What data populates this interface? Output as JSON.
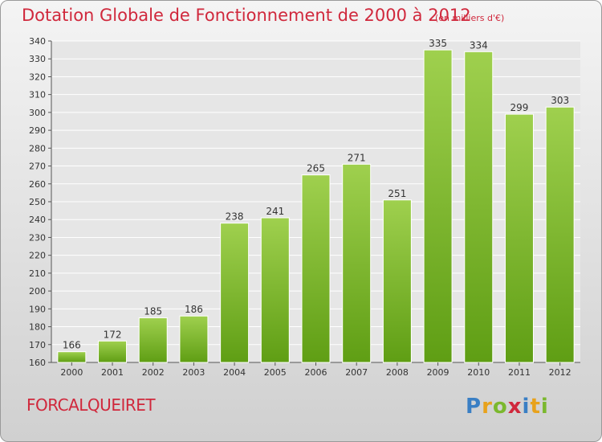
{
  "chart_data": {
    "type": "bar",
    "title": "Dotation Globale de Fonctionnement de 2000 à 2012",
    "subtitle": "(en milliers d'€)",
    "categories": [
      "2000",
      "2001",
      "2002",
      "2003",
      "2004",
      "2005",
      "2006",
      "2007",
      "2008",
      "2009",
      "2010",
      "2011",
      "2012"
    ],
    "values": [
      166,
      172,
      185,
      186,
      238,
      241,
      265,
      271,
      251,
      335,
      334,
      299,
      303
    ],
    "ylim": [
      160,
      340
    ],
    "yticks": [
      160,
      170,
      180,
      190,
      200,
      210,
      220,
      230,
      240,
      250,
      260,
      270,
      280,
      290,
      300,
      310,
      320,
      330,
      340
    ],
    "grid": true,
    "bar_color_top": "#9fd04e",
    "bar_color_bottom": "#5f9e14"
  },
  "footer": {
    "commune": "FORCALQUEIRET",
    "logo_letters": [
      "P",
      "r",
      "o",
      "x",
      "i",
      "t",
      "i"
    ],
    "logo_colors": [
      "#3a7fc4",
      "#e8a21c",
      "#7bb82e",
      "#d0283c",
      "#3a7fc4",
      "#e8a21c",
      "#7bb82e"
    ]
  },
  "colors": {
    "accent": "#d0283c"
  }
}
